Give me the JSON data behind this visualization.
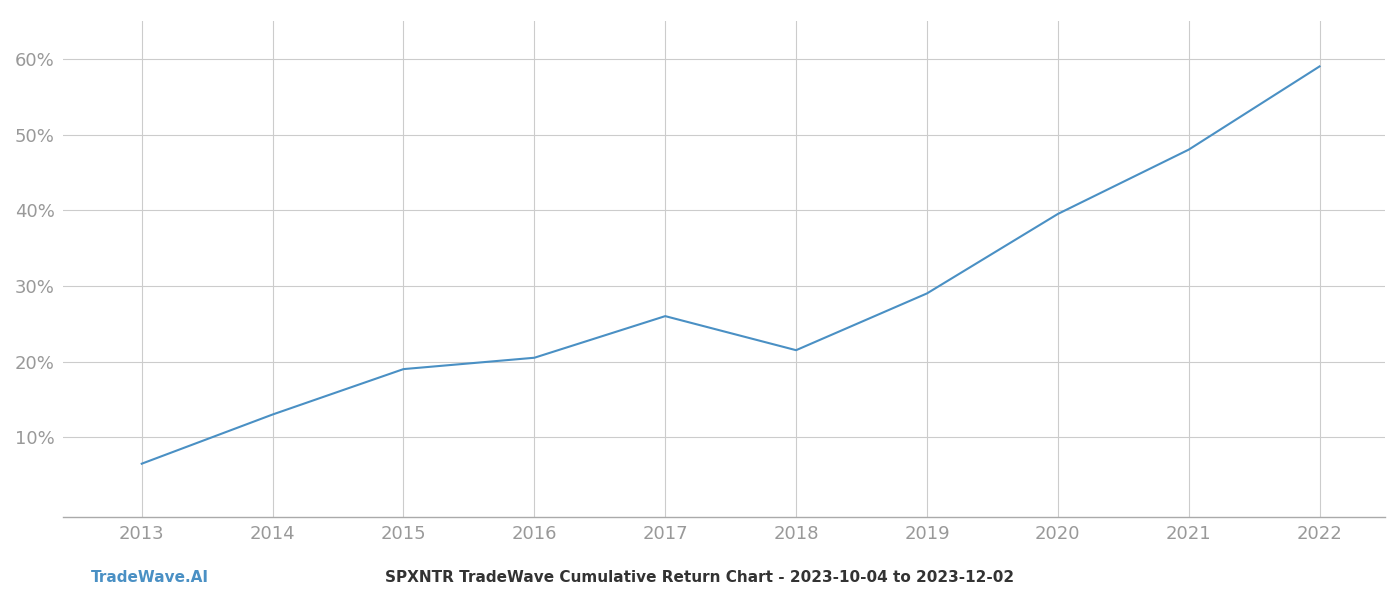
{
  "x_years": [
    2013,
    2014,
    2015,
    2016,
    2017,
    2018,
    2019,
    2020,
    2021,
    2022
  ],
  "y_values": [
    0.065,
    0.13,
    0.19,
    0.205,
    0.26,
    0.215,
    0.29,
    0.395,
    0.48,
    0.59
  ],
  "line_color": "#4a90c4",
  "line_width": 1.5,
  "background_color": "#ffffff",
  "grid_color": "#cccccc",
  "title": "SPXNTR TradeWave Cumulative Return Chart - 2023-10-04 to 2023-12-02",
  "footer_left": "TradeWave.AI",
  "ylim": [
    -0.005,
    0.65
  ],
  "yticks": [
    0.1,
    0.2,
    0.3,
    0.4,
    0.5,
    0.6
  ],
  "ytick_labels": [
    "10%",
    "20%",
    "30%",
    "40%",
    "50%",
    "60%"
  ],
  "xlim": [
    2012.4,
    2022.5
  ],
  "xticks": [
    2013,
    2014,
    2015,
    2016,
    2017,
    2018,
    2019,
    2020,
    2021,
    2022
  ],
  "tick_color": "#999999",
  "tick_fontsize": 13,
  "footer_fontsize": 11,
  "title_fontsize": 11,
  "spine_color": "#aaaaaa",
  "footer_left_color": "#4a90c4",
  "title_color": "#333333"
}
